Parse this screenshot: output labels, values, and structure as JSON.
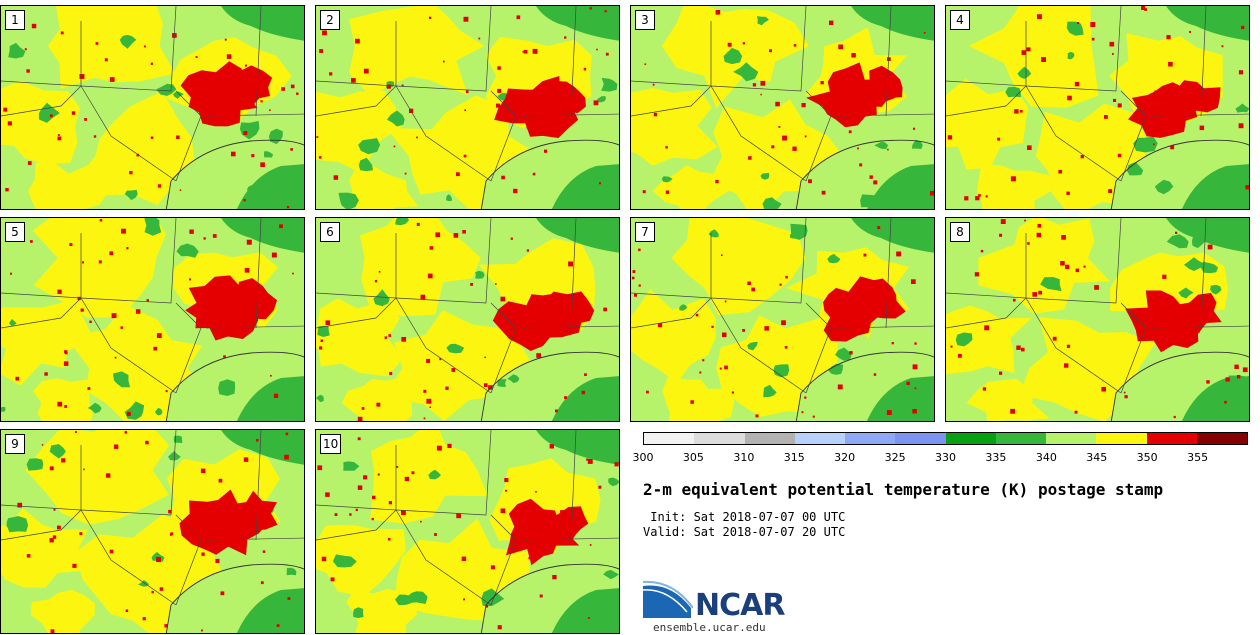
{
  "panels": [
    {
      "number": "1"
    },
    {
      "number": "2"
    },
    {
      "number": "3"
    },
    {
      "number": "4"
    },
    {
      "number": "5"
    },
    {
      "number": "6"
    },
    {
      "number": "7"
    },
    {
      "number": "8"
    },
    {
      "number": "9"
    },
    {
      "number": "10"
    }
  ],
  "colorbar": {
    "colors": [
      "#f2f2f2",
      "#dcdcdc",
      "#b2b2b2",
      "#b7d1fb",
      "#8fa8f5",
      "#7d93f2",
      "#06a012",
      "#37b63c",
      "#b6f36a",
      "#fbf510",
      "#e40000",
      "#860000"
    ],
    "ticks": [
      "300",
      "305",
      "310",
      "315",
      "320",
      "325",
      "330",
      "335",
      "340",
      "345",
      "350",
      "355"
    ]
  },
  "title": "2-m equivalent potential temperature (K) postage stamp",
  "init": " Init: Sat 2018-07-07 00 UTC",
  "valid": "Valid: Sat 2018-07-07 20 UTC",
  "logo": {
    "text": "NCAR",
    "url": "ensemble.ucar.edu"
  },
  "map_colors": {
    "green_light": "#b6f36a",
    "yellow": "#fbf510",
    "red": "#e40000",
    "green": "#37b63c",
    "green_dark": "#06a012"
  }
}
